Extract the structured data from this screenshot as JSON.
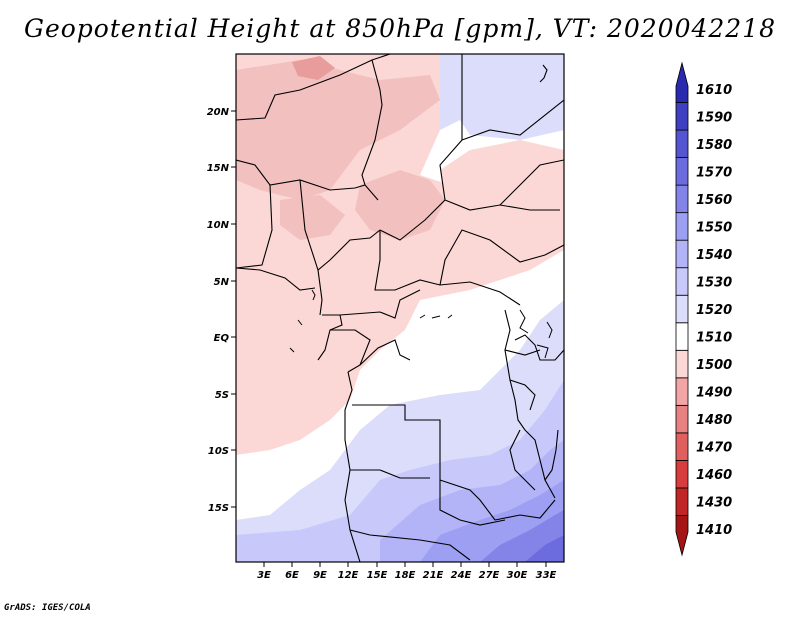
{
  "title": "Geopotential Height at 850hPa [gpm], VT: 2020042218",
  "credit": "GrADS: IGES/COLA",
  "map": {
    "lon_labels": [
      "3E",
      "6E",
      "9E",
      "12E",
      "15E",
      "18E",
      "21E",
      "24E",
      "27E",
      "30E",
      "33E"
    ],
    "lat_labels": [
      "20N",
      "15N",
      "10N",
      "5N",
      "EQ",
      "5S",
      "10S",
      "15S"
    ]
  },
  "colorbar": {
    "levels": [
      {
        "label": "1410",
        "color": "#a51515"
      },
      {
        "label": "1430",
        "color": "#c22525"
      },
      {
        "label": "1460",
        "color": "#d93c3c"
      },
      {
        "label": "1470",
        "color": "#e06060"
      },
      {
        "label": "1480",
        "color": "#e88282"
      },
      {
        "label": "1490",
        "color": "#f2a5a5"
      },
      {
        "label": "1500",
        "color": "#fbd8d6"
      },
      {
        "label": "1510",
        "color": "#ffffff"
      },
      {
        "label": "1520",
        "color": "#dcdcfb"
      },
      {
        "label": "1530",
        "color": "#c8c8fa"
      },
      {
        "label": "1540",
        "color": "#b3b3f7"
      },
      {
        "label": "1550",
        "color": "#9d9ff3"
      },
      {
        "label": "1560",
        "color": "#8383e8"
      },
      {
        "label": "1570",
        "color": "#6c6cde"
      },
      {
        "label": "1580",
        "color": "#5555d1"
      },
      {
        "label": "1590",
        "color": "#3f3fc2"
      },
      {
        "label": "1610",
        "color": "#2a2aae"
      }
    ]
  }
}
